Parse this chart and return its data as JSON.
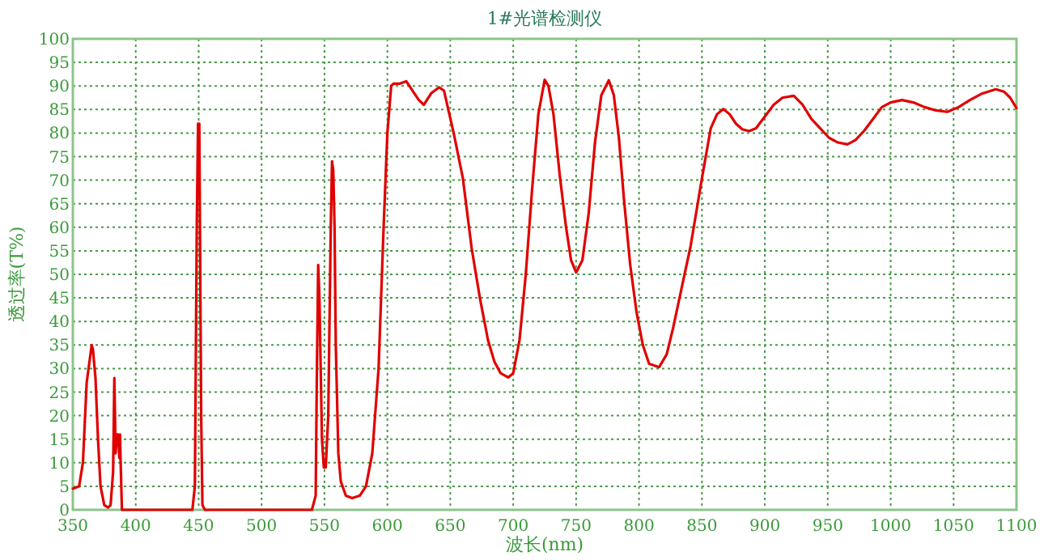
{
  "chart_data": {
    "type": "line",
    "title": "1#光谱检测仪",
    "xlabel": "波长(nm)",
    "ylabel": "透过率(T%)",
    "xlim": [
      350,
      1100
    ],
    "ylim": [
      0,
      100
    ],
    "xticks": [
      350,
      400,
      450,
      500,
      550,
      600,
      650,
      700,
      750,
      800,
      850,
      900,
      950,
      1000,
      1050,
      1100
    ],
    "yticks": [
      0,
      5,
      10,
      15,
      20,
      25,
      30,
      35,
      40,
      45,
      50,
      55,
      60,
      65,
      70,
      75,
      80,
      85,
      90,
      95,
      100
    ],
    "grid": true,
    "series": [
      {
        "color": "#e00000",
        "x": [
          350,
          355,
          358,
          361,
          364,
          365,
          366,
          368,
          370,
          372,
          375,
          378,
          380,
          382,
          383,
          384,
          385,
          386,
          387,
          387.5,
          388,
          389,
          390,
          445,
          447,
          448.5,
          449.5,
          450.5,
          451,
          452,
          453,
          455,
          540,
          543,
          544,
          545,
          546,
          547,
          548,
          549.5,
          551,
          553,
          555,
          556,
          557,
          558,
          559,
          561,
          563,
          567,
          572,
          578,
          583,
          588,
          593,
          597,
          600,
          603,
          605,
          610,
          615,
          620,
          625,
          629,
          635,
          641,
          645,
          653,
          660,
          667,
          673.5,
          680,
          685,
          690,
          696,
          700,
          705,
          710,
          715,
          720,
          725,
          728,
          732,
          737,
          742,
          746,
          750,
          755,
          760,
          765,
          770,
          776,
          780,
          784,
          788,
          793,
          798,
          803,
          808,
          816,
          822,
          827,
          833,
          841,
          850,
          857,
          862,
          867,
          872,
          877,
          882,
          887.5,
          893,
          900,
          907,
          914,
          923,
          930,
          937,
          944,
          951,
          958,
          965.6,
          972,
          979,
          986,
          993,
          1000,
          1009,
          1018,
          1027,
          1036,
          1045,
          1054,
          1063,
          1072,
          1083.6,
          1090,
          1095,
          1100
        ],
        "values": [
          4.5,
          5,
          10,
          27,
          33,
          35,
          34,
          28,
          15,
          5,
          1,
          0.5,
          1,
          8,
          28,
          12,
          16,
          16,
          11,
          16,
          10,
          0,
          0,
          0,
          5,
          60,
          82,
          82,
          62,
          20,
          1,
          0,
          0,
          3,
          30,
          52,
          45,
          30,
          15,
          9,
          9,
          20,
          60,
          74,
          72,
          60,
          35,
          12,
          6,
          3,
          2.5,
          3,
          5,
          12,
          30,
          60,
          80,
          90,
          90.5,
          90.5,
          91,
          89,
          87,
          86,
          88.5,
          89.7,
          89,
          79.6,
          70.4,
          55.5,
          45,
          36,
          31.5,
          29,
          28.1,
          29,
          36,
          50,
          68,
          84,
          91.3,
          90,
          84,
          71,
          60,
          53,
          50.4,
          53,
          63,
          78,
          88,
          91.2,
          88,
          79,
          66,
          52,
          42,
          35,
          31,
          30.3,
          33,
          38.5,
          46,
          56,
          70.4,
          81,
          84,
          85.1,
          84,
          82,
          80.8,
          80.4,
          81,
          83.5,
          86,
          87.5,
          87.9,
          86,
          83,
          81,
          79,
          78,
          77.6,
          78.5,
          80.5,
          83,
          85.5,
          86.5,
          87,
          86.5,
          85.5,
          84.8,
          84.5,
          85.5,
          87,
          88.3,
          89.3,
          88.8,
          87.5,
          85.3
        ]
      }
    ]
  }
}
